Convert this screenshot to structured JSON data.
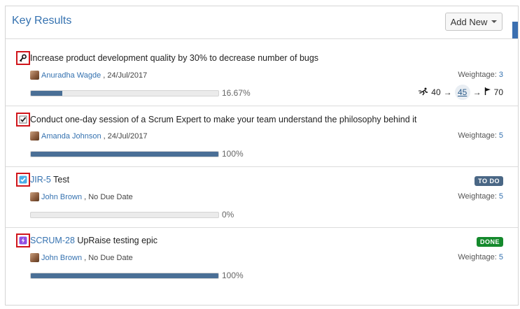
{
  "header": {
    "title": "Key Results",
    "add_new_label": "Add New"
  },
  "items": [
    {
      "type_icon": "key-icon",
      "key": "",
      "title": "Increase product development quality by 30% to decrease number of bugs",
      "owner": "Anuradha Wagde",
      "date": ", 24/Jul/2017",
      "weightage_label": "Weightage:",
      "weightage": "3",
      "progress": 16.67,
      "progress_label": "16.67%",
      "metric": {
        "start": "40",
        "arrow": "→",
        "current": "45",
        "target": "70"
      }
    },
    {
      "type_icon": "checkbox-icon",
      "key": "",
      "title": "Conduct one-day session of a Scrum Expert to make your team understand the philosophy behind it",
      "owner": "Amanda Johnson",
      "date": ", 24/Jul/2017",
      "weightage_label": "Weightage:",
      "weightage": "5",
      "progress": 100,
      "progress_label": "100%"
    },
    {
      "type_icon": "jira-task-icon",
      "key": "JIR-5",
      "title": " Test",
      "owner": "John Brown",
      "date": ", No Due Date",
      "weightage_label": "Weightage:",
      "weightage": "5",
      "progress": 0,
      "progress_label": "0%",
      "status": "TO DO",
      "status_color": "#4a6785"
    },
    {
      "type_icon": "epic-icon",
      "key": "SCRUM-28",
      "title": " UpRaise testing epic",
      "owner": "John Brown",
      "date": ", No Due Date",
      "weightage_label": "Weightage:",
      "weightage": "5",
      "progress": 100,
      "progress_label": "100%",
      "status": "DONE",
      "status_color": "#14892c"
    }
  ]
}
